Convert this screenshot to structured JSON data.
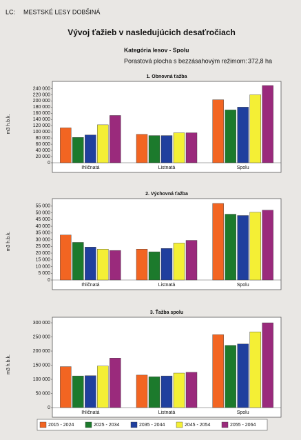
{
  "header": {
    "code": "LC:",
    "org": "MESTSKÉ LESY DOBŠINÁ",
    "title": "Vývoj ťažieb v nasledujúcich desaťročiach",
    "category": "Kategória lesov -  Spolu",
    "area_label": "Porastová plocha s bezzásahovým režimom:",
    "area_value": "372,8 ha"
  },
  "legend": {
    "position": "bottom",
    "series": [
      {
        "name": "2015 - 2024",
        "color": "#f26522"
      },
      {
        "name": "2025 - 2034",
        "color": "#1c7a2c"
      },
      {
        "name": "2035 - 2044",
        "color": "#203f9e"
      },
      {
        "name": "2045 - 2054",
        "color": "#f4ef35"
      },
      {
        "name": "2055 - 2064",
        "color": "#9a2a7c"
      }
    ]
  },
  "chart_data": [
    {
      "type": "bar",
      "title": "1. Obnovná ťažba",
      "ylabel": "m3 h.b.k.",
      "categories": [
        "Ihličnatá",
        "Listnatá",
        "Spolu"
      ],
      "ylim": [
        0,
        250000
      ],
      "yticks": [
        0,
        {
          "value": 20000,
          "label": "20 000"
        },
        {
          "value": 40000,
          "label": "40 000"
        },
        {
          "value": 60000,
          "label": "60 000"
        },
        {
          "value": 80000,
          "label": "80 000"
        },
        {
          "value": 100000,
          "label": "100 000"
        },
        {
          "value": 120000,
          "label": "120 000"
        },
        {
          "value": 140000,
          "label": "140 000"
        },
        {
          "value": 160000,
          "label": "160 000"
        },
        {
          "value": 180000,
          "label": "180 000"
        },
        {
          "value": 200000,
          "label": "200 000"
        },
        {
          "value": 220000,
          "label": "220 000"
        },
        {
          "value": 240000,
          "label": "240 000"
        }
      ],
      "series": [
        {
          "values": [
            113000,
            92000,
            204000
          ]
        },
        {
          "values": [
            82000,
            88000,
            171000
          ]
        },
        {
          "values": [
            90000,
            88000,
            180000
          ]
        },
        {
          "values": [
            123000,
            97000,
            220000
          ]
        },
        {
          "values": [
            153000,
            97000,
            250000
          ]
        }
      ]
    },
    {
      "type": "bar",
      "title": "2. Výchovná ťažba",
      "ylabel": "m3 h.b.k.",
      "categories": [
        "Ihličnatá",
        "Listnatá",
        "Spolu"
      ],
      "ylim": [
        0,
        57500
      ],
      "yticks": [
        0,
        {
          "value": 5000,
          "label": "5 000"
        },
        {
          "value": 10000,
          "label": "10 000"
        },
        {
          "value": 15000,
          "label": "15 000"
        },
        {
          "value": 20000,
          "label": "20 000"
        },
        {
          "value": 25000,
          "label": "25 000"
        },
        {
          "value": 30000,
          "label": "30 000"
        },
        {
          "value": 35000,
          "label": "35 000"
        },
        {
          "value": 40000,
          "label": "40 000"
        },
        {
          "value": 45000,
          "label": "45 000"
        },
        {
          "value": 50000,
          "label": "50 000"
        },
        {
          "value": 55000,
          "label": "55 000"
        }
      ],
      "series": [
        {
          "values": [
            33500,
            23000,
            57000
          ]
        },
        {
          "values": [
            28000,
            21000,
            49000
          ]
        },
        {
          "values": [
            24500,
            23500,
            48000
          ]
        },
        {
          "values": [
            23000,
            27500,
            50500
          ]
        },
        {
          "values": [
            22000,
            29500,
            52000
          ]
        }
      ]
    },
    {
      "type": "bar",
      "title": "3. Ťažba spolu",
      "ylabel": "m3 h.b.k.",
      "categories": [
        "Ihličnatá",
        "Listnatá",
        "Spolu"
      ],
      "ylim": [
        0,
        305000
      ],
      "yticks": [
        0,
        {
          "value": 50000,
          "label": "50 000"
        },
        {
          "value": 100000,
          "label": "100 000"
        },
        {
          "value": 150000,
          "label": "150 000"
        },
        {
          "value": 200000,
          "label": "200 000"
        },
        {
          "value": 250000,
          "label": "250 000"
        },
        {
          "value": 300000,
          "label": "300 000"
        }
      ],
      "series": [
        {
          "values": [
            145000,
            115000,
            258000
          ]
        },
        {
          "values": [
            112000,
            109000,
            220000
          ]
        },
        {
          "values": [
            113000,
            112000,
            225000
          ]
        },
        {
          "values": [
            147000,
            122000,
            268000
          ]
        },
        {
          "values": [
            175000,
            125000,
            300000
          ]
        }
      ]
    }
  ]
}
